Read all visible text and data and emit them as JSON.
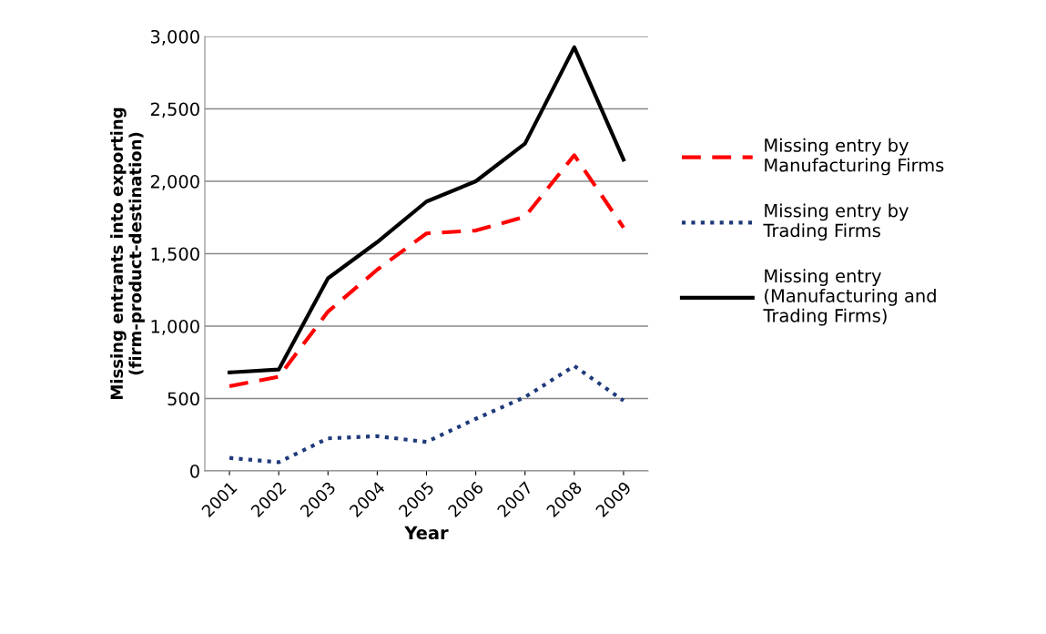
{
  "chart_data": {
    "type": "line",
    "xlabel": "Year",
    "ylabel": "Missing entrants into exporting\n(firm-product-destination)",
    "categories": [
      "2001",
      "2002",
      "2003",
      "2004",
      "2005",
      "2006",
      "2007",
      "2008",
      "2009"
    ],
    "series": [
      {
        "name": "Missing entry by\nManufacturing Firms",
        "color": "#ff0000",
        "line_style": "dashed",
        "values": [
          585,
          650,
          1100,
          1390,
          1640,
          1660,
          1755,
          2180,
          1680
        ]
      },
      {
        "name": "Missing entry by\nTrading Firms",
        "color": "#1f3a7a",
        "line_style": "dotted",
        "values": [
          90,
          60,
          225,
          240,
          200,
          360,
          510,
          725,
          485
        ]
      },
      {
        "name": "Missing entry\n(Manufacturing and\nTrading Firms)",
        "color": "#000000",
        "line_style": "solid",
        "values": [
          680,
          700,
          1330,
          1580,
          1860,
          2000,
          2260,
          2925,
          2150
        ]
      }
    ],
    "ylim": [
      0,
      3000
    ],
    "yticks": [
      {
        "value": 0,
        "label": "0"
      },
      {
        "value": 500,
        "label": "500"
      },
      {
        "value": 1000,
        "label": "1,000"
      },
      {
        "value": 1500,
        "label": "1,500"
      },
      {
        "value": 2000,
        "label": "2,000"
      },
      {
        "value": 2500,
        "label": "2,500"
      },
      {
        "value": 3000,
        "label": "3,000"
      }
    ],
    "grid": "y",
    "legend": "right",
    "marker": "none"
  }
}
